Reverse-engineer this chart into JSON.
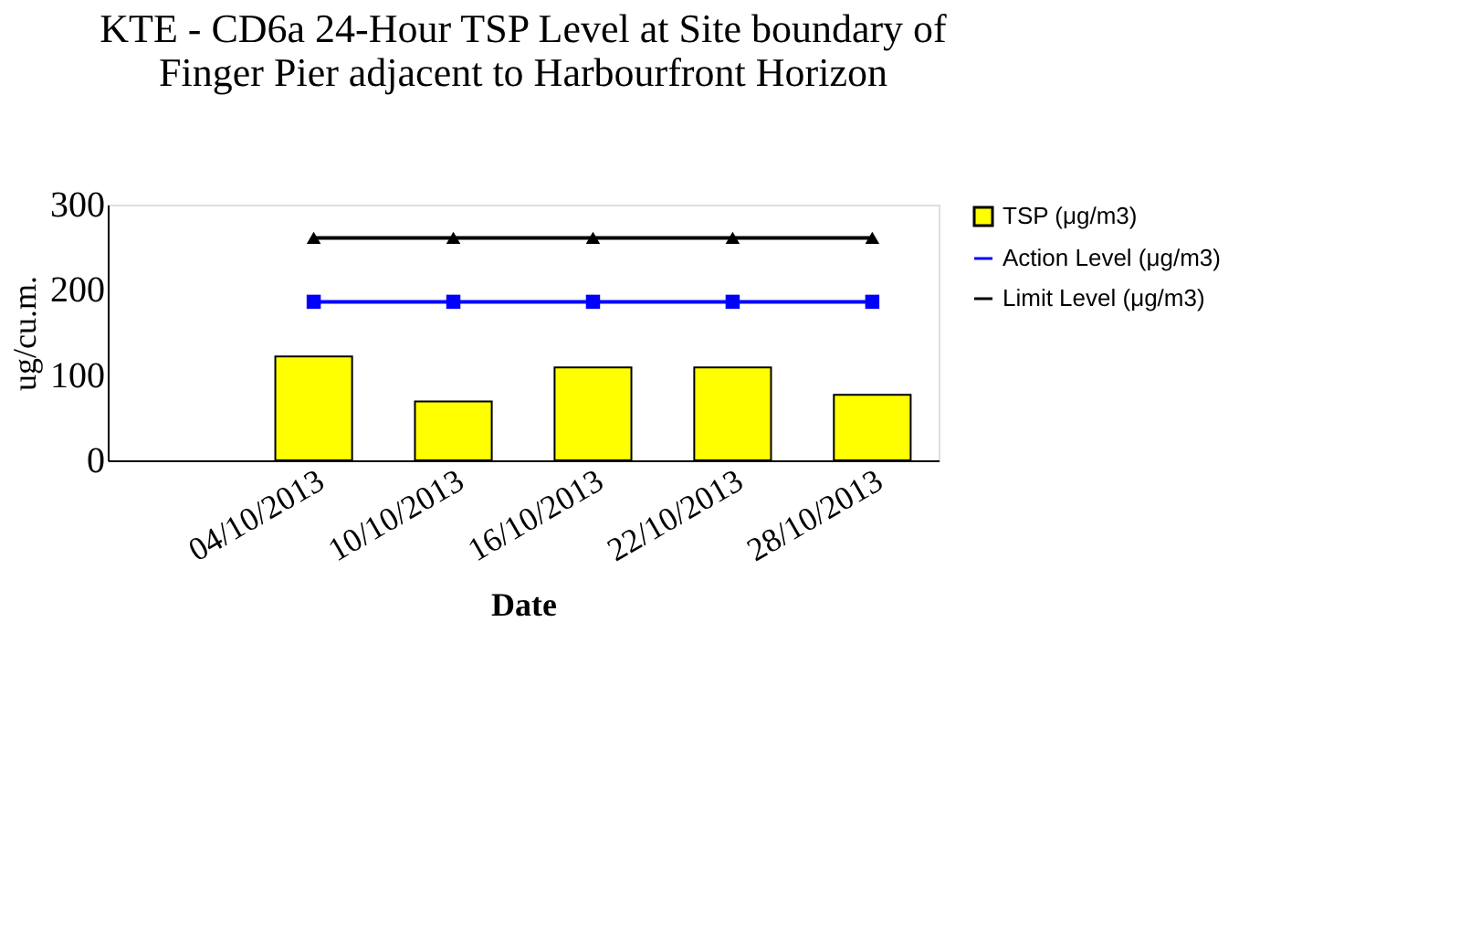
{
  "chart_data": {
    "type": "bar",
    "title": [
      "KTE - CD6a 24-Hour TSP Level at Site boundary of",
      "Finger Pier adjacent to Harbourfront Horizon"
    ],
    "xlabel": "Date",
    "ylabel": "ug/cu.m.",
    "categories": [
      null,
      "04/10/2013",
      "10/10/2013",
      "16/10/2013",
      "22/10/2013",
      "28/10/2013"
    ],
    "series": [
      {
        "name": "TSP (μg/m3)",
        "color": "#ffff00",
        "values": [
          null,
          122,
          69,
          109,
          109,
          77
        ]
      },
      {
        "name": "Action Level (μg/m3)",
        "type": "line",
        "marker": "square",
        "color": "#0000ff",
        "values": [
          null,
          186,
          186,
          186,
          186,
          186
        ]
      },
      {
        "name": "Limit Level (μg/m3)",
        "type": "line",
        "marker": "triangle",
        "color": "#000000",
        "values": [
          null,
          261,
          261,
          261,
          261,
          261
        ]
      }
    ],
    "ylim": [
      0,
      300
    ],
    "yticks": [
      0,
      100,
      200,
      300
    ],
    "grid": false,
    "legend": "right"
  }
}
